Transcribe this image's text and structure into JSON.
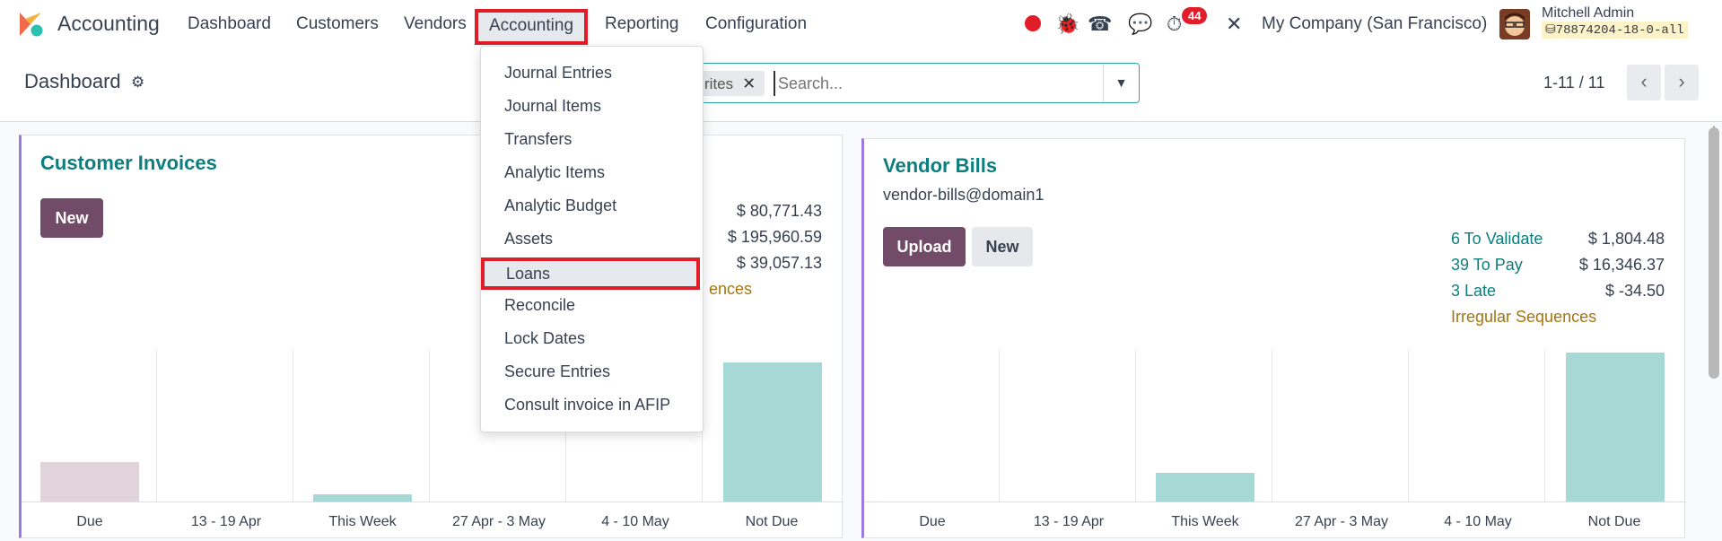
{
  "app_name": "Accounting",
  "nav": {
    "dashboard": "Dashboard",
    "customers": "Customers",
    "vendors": "Vendors",
    "accounting": "Accounting",
    "reporting": "Reporting",
    "configuration": "Configuration"
  },
  "systray": {
    "activity_count": "44",
    "company": "My Company (San Francisco)",
    "user_name": "Mitchell Admin",
    "db_name": "78874204-18-0-all"
  },
  "breadcrumb": {
    "title": "Dashboard"
  },
  "search": {
    "facet": "rites",
    "placeholder": "Search..."
  },
  "pager": {
    "value": "1-11 / 11"
  },
  "accounting_menu": [
    "Journal Entries",
    "Journal Items",
    "Transfers",
    "Analytic Items",
    "Analytic Budget",
    "Assets",
    "Loans",
    "Reconcile",
    "Lock Dates",
    "Secure Entries",
    "Consult invoice in AFIP"
  ],
  "customer_invoices": {
    "title": "Customer Invoices",
    "new_label": "New",
    "amounts": [
      "$ 80,771.43",
      "$ 195,960.59",
      "$ 39,057.13"
    ],
    "irregular_tail": "ences",
    "chart_labels": [
      "Due",
      "13 - 19 Apr",
      "This Week",
      "27 Apr - 3 May",
      "4 - 10 May",
      "Not Due"
    ]
  },
  "vendor_bills": {
    "title": "Vendor Bills",
    "email": "vendor-bills@domain1",
    "upload_label": "Upload",
    "new_label": "New",
    "stats": [
      {
        "label": "6 To Validate",
        "amount": "$ 1,804.48"
      },
      {
        "label": "39 To Pay",
        "amount": "$ 16,346.37"
      },
      {
        "label": "3 Late",
        "amount": "$ -34.50"
      }
    ],
    "irregular": "Irregular Sequences",
    "chart_labels": [
      "Due",
      "13 - 19 Apr",
      "This Week",
      "27 Apr - 3 May",
      "4 - 10 May",
      "Not Due"
    ]
  },
  "colors": {
    "accent": "#714b67",
    "teal": "#0d7d7d",
    "bar": "#a6d9d6",
    "bar_past": "#e0d3da",
    "highlight": "#e11d2a"
  }
}
